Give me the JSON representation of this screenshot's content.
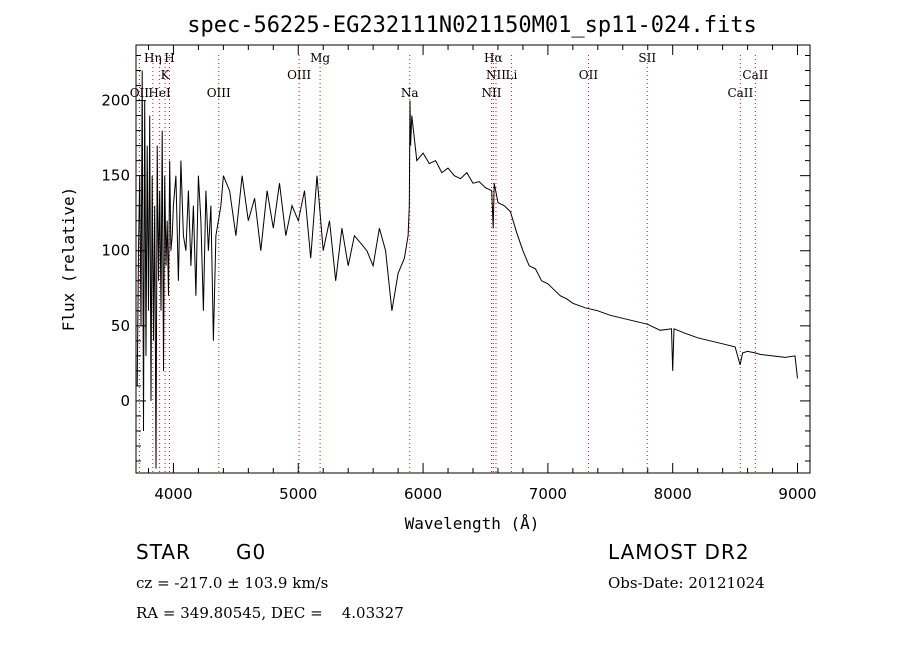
{
  "chart_data": {
    "type": "line",
    "title": "spec-56225-EG232111N021150M01_sp11-024.fits",
    "xlabel": "Wavelength (Å)",
    "ylabel": "Flux (relative)",
    "xlim": [
      3700,
      9100
    ],
    "ylim": [
      -48,
      237
    ],
    "x_ticks": [
      4000,
      5000,
      6000,
      7000,
      8000,
      9000
    ],
    "y_ticks": [
      0,
      50,
      100,
      150,
      200
    ],
    "grid": false,
    "line_color": "#000000",
    "marker_color": "#ff0000",
    "series": [
      {
        "x": [
          3710,
          3720,
          3730,
          3740,
          3750,
          3760,
          3770,
          3780,
          3790,
          3800,
          3810,
          3820,
          3830,
          3840,
          3850,
          3860,
          3870,
          3880,
          3890,
          3900,
          3910,
          3920,
          3930,
          3940,
          3950,
          3960,
          3970,
          3980,
          3990,
          4000,
          4020,
          4040,
          4060,
          4080,
          4100,
          4120,
          4140,
          4160,
          4180,
          4200,
          4220,
          4240,
          4260,
          4280,
          4300,
          4320,
          4340,
          4360,
          4380,
          4400,
          4450,
          4500,
          4550,
          4600,
          4650,
          4700,
          4750,
          4800,
          4850,
          4900,
          4950,
          5000,
          5050,
          5100,
          5150,
          5200,
          5250,
          5300,
          5350,
          5400,
          5450,
          5500,
          5550,
          5600,
          5650,
          5700,
          5750,
          5800,
          5850,
          5880,
          5890,
          5895,
          5900,
          5910,
          5930,
          5950,
          6000,
          6050,
          6100,
          6150,
          6200,
          6250,
          6300,
          6350,
          6400,
          6450,
          6500,
          6550,
          6562,
          6570,
          6600,
          6650,
          6700,
          6750,
          6800,
          6850,
          6900,
          6950,
          7000,
          7050,
          7100,
          7150,
          7200,
          7300,
          7400,
          7500,
          7600,
          7700,
          7800,
          7900,
          7990,
          8000,
          8010,
          8100,
          8200,
          8300,
          8400,
          8500,
          8540,
          8560,
          8600,
          8660,
          8700,
          8800,
          8900,
          8980,
          9000
        ],
        "y": [
          10,
          100,
          150,
          50,
          220,
          -20,
          200,
          30,
          170,
          60,
          190,
          0,
          150,
          40,
          130,
          -45,
          170,
          80,
          140,
          60,
          180,
          20,
          150,
          90,
          120,
          70,
          160,
          100,
          110,
          130,
          150,
          80,
          160,
          110,
          100,
          140,
          90,
          130,
          70,
          150,
          120,
          60,
          140,
          100,
          130,
          40,
          110,
          120,
          130,
          150,
          140,
          110,
          150,
          120,
          135,
          100,
          140,
          115,
          145,
          110,
          130,
          120,
          140,
          95,
          150,
          100,
          120,
          80,
          115,
          90,
          110,
          105,
          100,
          90,
          115,
          100,
          60,
          85,
          95,
          110,
          130,
          200,
          170,
          190,
          175,
          160,
          165,
          158,
          160,
          152,
          155,
          150,
          148,
          152,
          145,
          146,
          142,
          140,
          115,
          145,
          132,
          130,
          126,
          112,
          100,
          90,
          88,
          80,
          78,
          74,
          70,
          68,
          65,
          62,
          60,
          57,
          55,
          53,
          51,
          47,
          48,
          20,
          48,
          45,
          42,
          40,
          38,
          36,
          24,
          32,
          33,
          32,
          31,
          30,
          29,
          30,
          15
        ]
      }
    ],
    "line_markers": [
      {
        "label": "Hη",
        "x": 3835,
        "row": 0
      },
      {
        "label": "H",
        "x": 3968,
        "row": 0
      },
      {
        "label": "K",
        "x": 3933,
        "row": 1
      },
      {
        "label": "OII",
        "x": 3727,
        "row": 2
      },
      {
        "label": "HeI",
        "x": 3889,
        "row": 2
      },
      {
        "label": "OIII",
        "x": 4363,
        "row": 2
      },
      {
        "label": "OIII",
        "x": 5007,
        "row": 1
      },
      {
        "label": "Mg",
        "x": 5175,
        "row": 0
      },
      {
        "label": "Na",
        "x": 5893,
        "row": 2
      },
      {
        "label": "Hα",
        "x": 6563,
        "row": 0
      },
      {
        "label": "NII",
        "x": 6584,
        "row": 1
      },
      {
        "label": "Li",
        "x": 6708,
        "row": 1
      },
      {
        "label": "NII",
        "x": 6548,
        "row": 2
      },
      {
        "label": "OII",
        "x": 7325,
        "row": 1
      },
      {
        "label": "SII",
        "x": 7796,
        "row": 0
      },
      {
        "label": "CaII",
        "x": 8662,
        "row": 1
      },
      {
        "label": "CaII",
        "x": 8542,
        "row": 2
      }
    ]
  },
  "info": {
    "object_class": "STAR",
    "subclass": "G0",
    "survey": "LAMOST DR2",
    "redshift": "cz = -217.0 ± 103.9 km/s",
    "obs_date": "Obs-Date: 20121024",
    "coords": "RA = 349.80545, DEC =    4.03327"
  }
}
